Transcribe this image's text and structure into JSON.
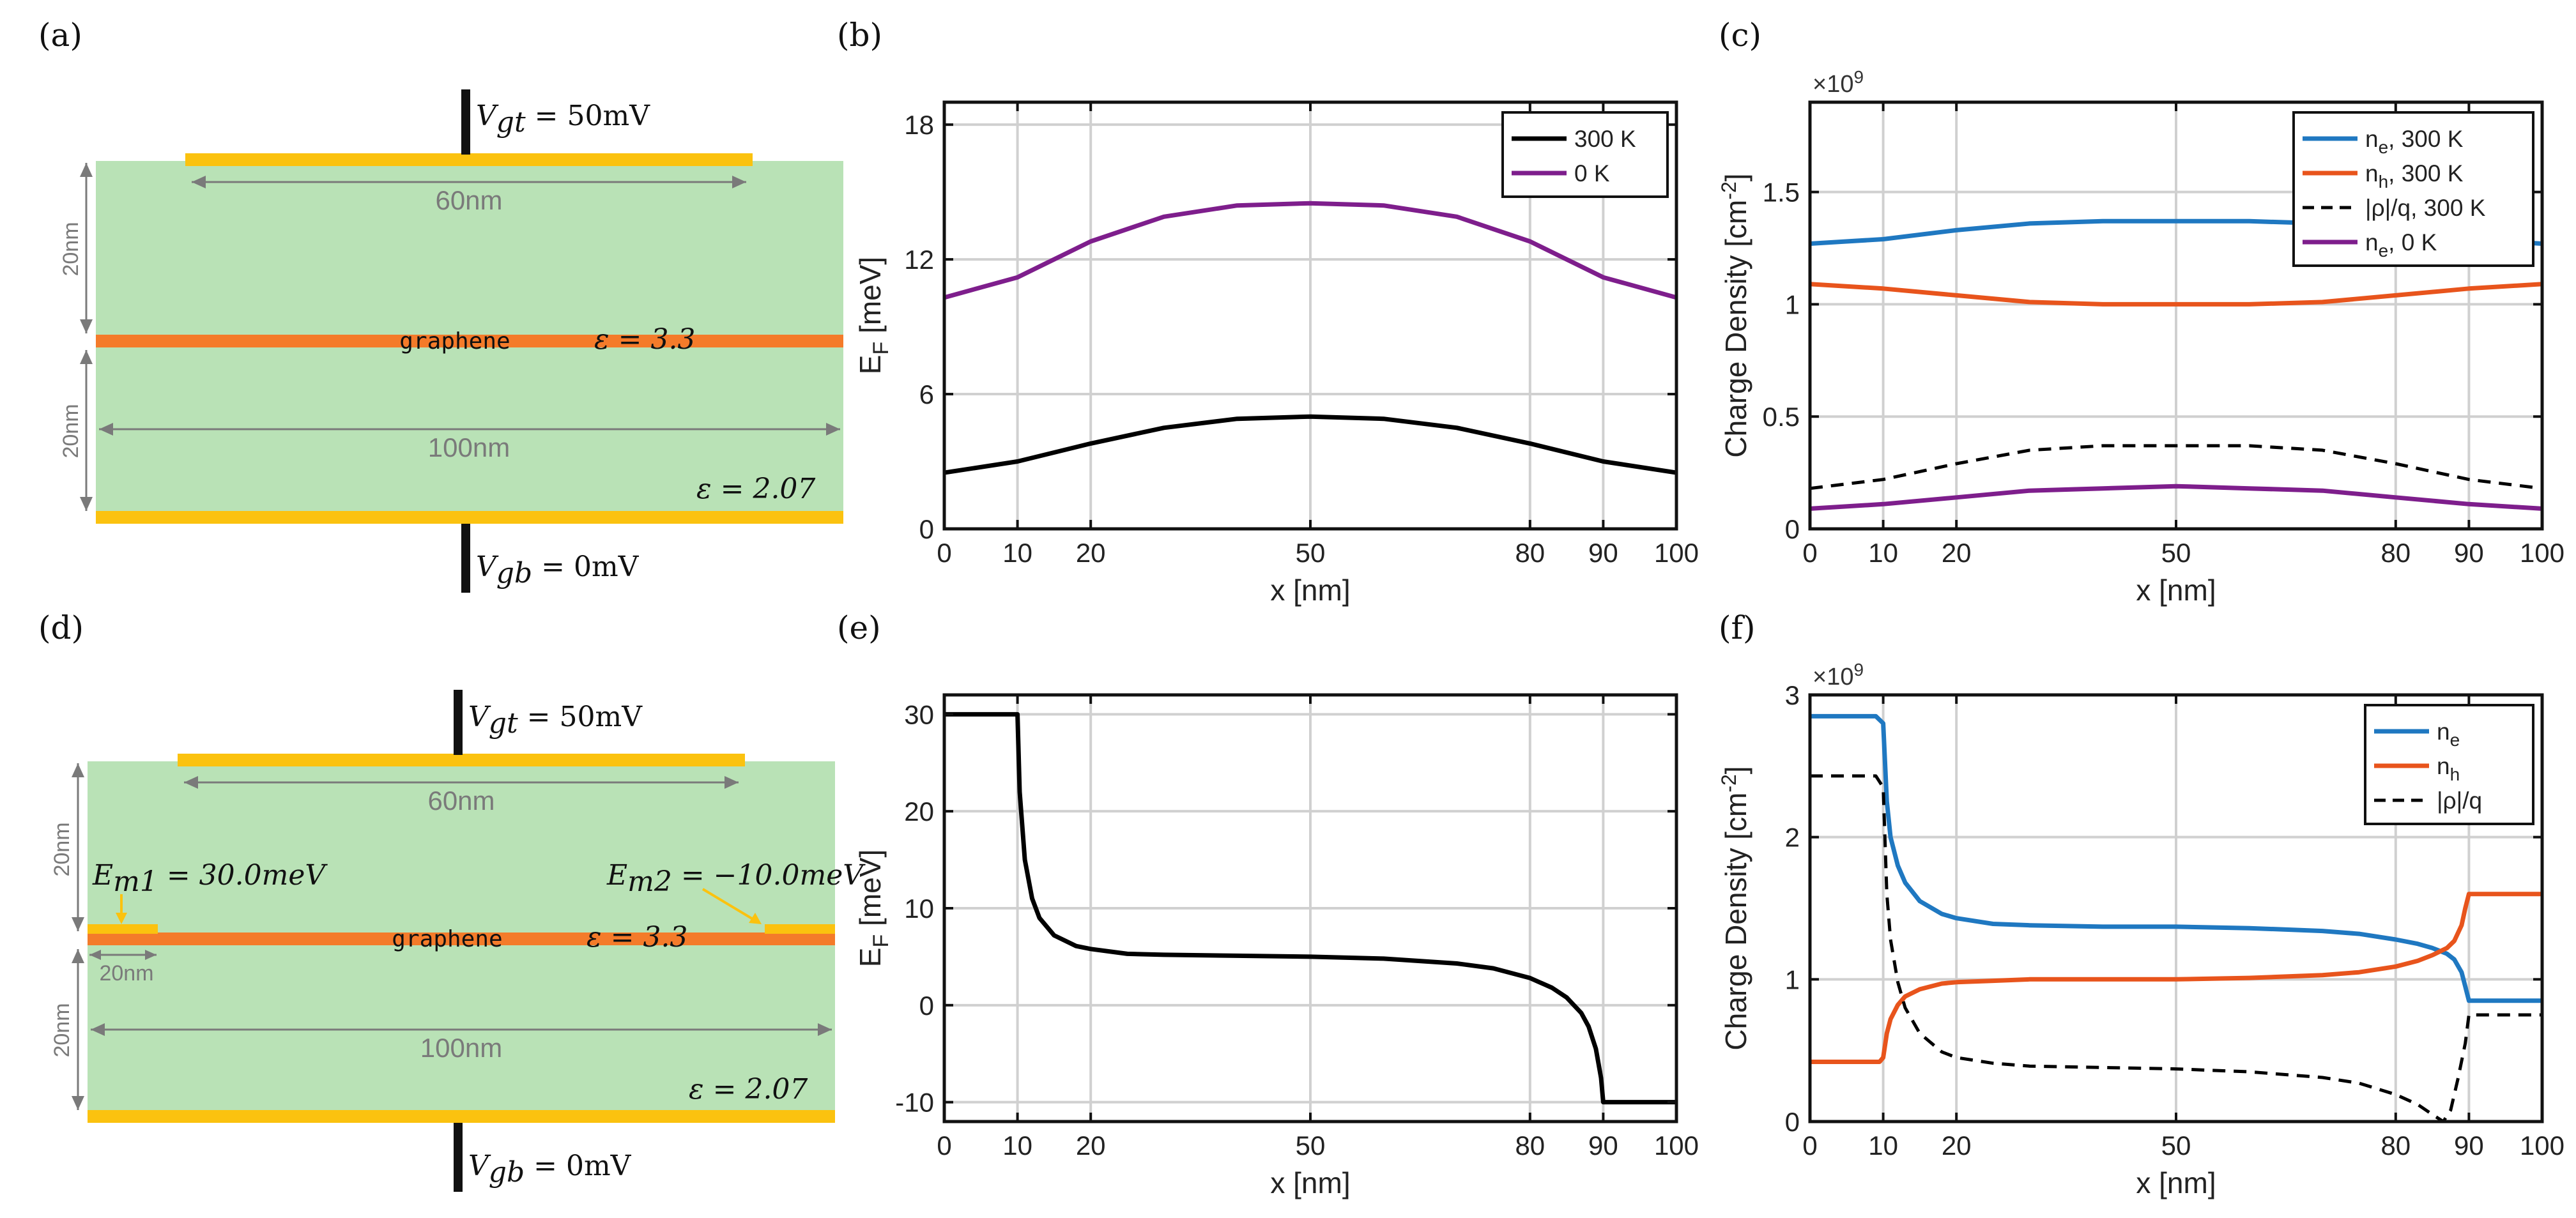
{
  "colors": {
    "dielectric": "#b9e2b6",
    "gate": "#fbc20f",
    "graphene": "#f47b2a",
    "dim_arrow": "#7a7a7a",
    "electrode": "#111111",
    "black": "#000000",
    "purple": "#7e1e8c",
    "blue": "#1f78c1",
    "orange": "#e8541c"
  },
  "panel_labels": {
    "a": "(a)",
    "b": "(b)",
    "c": "(c)",
    "d": "(d)",
    "e": "(e)",
    "f": "(f)"
  },
  "diagram_a": {
    "vgt_label": {
      "sym": "V",
      "sub": "gt",
      "value": " = 50mV"
    },
    "vgb_label": {
      "sym": "V",
      "sub": "gb",
      "value": " = 0mV"
    },
    "top_gate_width": "60nm",
    "device_width": "100nm",
    "top_thickness": "20nm",
    "bottom_thickness": "20nm",
    "graphene_label": "graphene",
    "eps_graphene": "ε = 3.3",
    "eps_substrate": "ε = 2.07"
  },
  "diagram_d": {
    "vgt_label": {
      "sym": "V",
      "sub": "gt",
      "value": " = 50mV"
    },
    "vgb_label": {
      "sym": "V",
      "sub": "gb",
      "value": " = 0mV"
    },
    "top_gate_width": "60nm",
    "device_width": "100nm",
    "top_thickness": "20nm",
    "bottom_thickness": "20nm",
    "contact_width": "20nm",
    "graphene_label": "graphene",
    "eps_graphene": "ε = 3.3",
    "eps_substrate": "ε = 2.07",
    "em1": {
      "sym": "E",
      "sub": "m1",
      "value": " = 30.0meV"
    },
    "em2": {
      "sym": "E",
      "sub": "m2",
      "value": " = −10.0meV"
    }
  },
  "chart_data": [
    {
      "panel": "b",
      "type": "line",
      "xlabel": "x [nm]",
      "ylabel": "E_F [meV]",
      "ylabel_main": "E",
      "ylabel_sub": "F",
      "ylabel_unit": " [meV]",
      "xlim": [
        0,
        100
      ],
      "ylim": [
        0,
        19
      ],
      "xticks": [
        0,
        10,
        20,
        50,
        80,
        90,
        100
      ],
      "yticks": [
        0,
        6,
        12,
        18
      ],
      "xtick_labels": [
        "0",
        "10",
        "20",
        "50",
        "80",
        "90",
        "100"
      ],
      "ytick_labels": [
        "0",
        "6",
        "12",
        "18"
      ],
      "grid": true,
      "legend_position": "top-right",
      "series": [
        {
          "name": "300 K",
          "color": "#000000",
          "dash": false,
          "x": [
            0,
            10,
            20,
            30,
            40,
            50,
            60,
            70,
            80,
            90,
            100
          ],
          "y": [
            2.5,
            3.0,
            3.8,
            4.5,
            4.9,
            5.0,
            4.9,
            4.5,
            3.8,
            3.0,
            2.5
          ]
        },
        {
          "name": "0 K",
          "color": "#7e1e8c",
          "dash": false,
          "x": [
            0,
            10,
            20,
            30,
            40,
            50,
            60,
            70,
            80,
            90,
            100
          ],
          "y": [
            10.3,
            11.2,
            12.8,
            13.9,
            14.4,
            14.5,
            14.4,
            13.9,
            12.8,
            11.2,
            10.3
          ]
        }
      ]
    },
    {
      "panel": "c",
      "type": "line",
      "xlabel": "x [nm]",
      "ylabel": "Charge Density [cm^-2]",
      "ylabel_main": "Charge Density [cm",
      "ylabel_sup": "-2",
      "ylabel_end": "]",
      "multiplier": "×10",
      "multiplier_exp": "9",
      "xlim": [
        0,
        100
      ],
      "ylim": [
        0,
        1.9
      ],
      "xticks": [
        0,
        10,
        20,
        50,
        80,
        90,
        100
      ],
      "yticks": [
        0,
        0.5,
        1,
        1.5
      ],
      "xtick_labels": [
        "0",
        "10",
        "20",
        "50",
        "80",
        "90",
        "100"
      ],
      "ytick_labels": [
        "0",
        "0.5",
        "1",
        "1.5"
      ],
      "grid": true,
      "legend_position": "top-right",
      "series": [
        {
          "name": "n_e, 300 K",
          "label_main": "n",
          "label_sub": "e",
          "label_end": ", 300 K",
          "color": "#1f78c1",
          "dash": false,
          "x": [
            0,
            10,
            20,
            30,
            40,
            50,
            60,
            70,
            80,
            90,
            100
          ],
          "y": [
            1.27,
            1.29,
            1.33,
            1.36,
            1.37,
            1.37,
            1.37,
            1.36,
            1.33,
            1.29,
            1.27
          ]
        },
        {
          "name": "n_h, 300 K",
          "label_main": "n",
          "label_sub": "h",
          "label_end": ", 300 K",
          "color": "#e8541c",
          "dash": false,
          "x": [
            0,
            10,
            20,
            30,
            40,
            50,
            60,
            70,
            80,
            90,
            100
          ],
          "y": [
            1.09,
            1.07,
            1.04,
            1.01,
            1.0,
            1.0,
            1.0,
            1.01,
            1.04,
            1.07,
            1.09
          ]
        },
        {
          "name": "|ρ|/q, 300 K",
          "label_main": "|ρ|/q, 300 K",
          "label_sub": "",
          "label_end": "",
          "color": "#000000",
          "dash": true,
          "x": [
            0,
            10,
            20,
            30,
            40,
            50,
            60,
            70,
            80,
            90,
            100
          ],
          "y": [
            0.18,
            0.22,
            0.29,
            0.35,
            0.37,
            0.37,
            0.37,
            0.35,
            0.29,
            0.22,
            0.18
          ]
        },
        {
          "name": "n_e, 0 K",
          "label_main": "n",
          "label_sub": "e",
          "label_end": ", 0 K",
          "color": "#7e1e8c",
          "dash": false,
          "x": [
            0,
            10,
            20,
            30,
            40,
            50,
            60,
            70,
            80,
            90,
            100
          ],
          "y": [
            0.09,
            0.11,
            0.14,
            0.17,
            0.18,
            0.19,
            0.18,
            0.17,
            0.14,
            0.11,
            0.09
          ]
        }
      ]
    },
    {
      "panel": "e",
      "type": "line",
      "xlabel": "x [nm]",
      "ylabel": "E_F [meV]",
      "ylabel_main": "E",
      "ylabel_sub": "F",
      "ylabel_unit": " [meV]",
      "xlim": [
        0,
        100
      ],
      "ylim": [
        -12,
        32
      ],
      "xticks": [
        0,
        10,
        20,
        50,
        80,
        90,
        100
      ],
      "yticks": [
        -10,
        0,
        10,
        20,
        30
      ],
      "xtick_labels": [
        "0",
        "10",
        "20",
        "50",
        "80",
        "90",
        "100"
      ],
      "ytick_labels": [
        "-10",
        "0",
        "10",
        "20",
        "30"
      ],
      "grid": true,
      "legend_position": "none",
      "series": [
        {
          "name": "",
          "color": "#000000",
          "dash": false,
          "x": [
            0,
            10,
            10.3,
            11,
            12,
            13,
            15,
            18,
            20,
            25,
            30,
            40,
            50,
            60,
            70,
            75,
            80,
            83,
            85,
            87,
            88,
            89,
            89.7,
            90,
            100
          ],
          "y": [
            30,
            30,
            22,
            15,
            11,
            9,
            7.2,
            6.1,
            5.8,
            5.3,
            5.2,
            5.1,
            5.0,
            4.8,
            4.3,
            3.8,
            2.8,
            1.8,
            0.8,
            -0.8,
            -2.2,
            -4.5,
            -7.5,
            -10,
            -10
          ]
        }
      ]
    },
    {
      "panel": "f",
      "type": "line",
      "xlabel": "x [nm]",
      "ylabel": "Charge Density [cm^-2]",
      "ylabel_main": "Charge Density [cm",
      "ylabel_sup": "-2",
      "ylabel_end": "]",
      "multiplier": "×10",
      "multiplier_exp": "9",
      "xlim": [
        0,
        100
      ],
      "ylim": [
        0,
        3
      ],
      "xticks": [
        0,
        10,
        20,
        50,
        80,
        90,
        100
      ],
      "yticks": [
        0,
        1,
        2,
        3
      ],
      "xtick_labels": [
        "0",
        "10",
        "20",
        "50",
        "80",
        "90",
        "100"
      ],
      "ytick_labels": [
        "0",
        "1",
        "2",
        "3"
      ],
      "grid": true,
      "legend_position": "top-right",
      "series": [
        {
          "name": "n_e",
          "label_main": "n",
          "label_sub": "e",
          "label_end": "",
          "color": "#1f78c1",
          "dash": false,
          "x": [
            0,
            9,
            10,
            10.5,
            11,
            12,
            13,
            15,
            18,
            20,
            25,
            30,
            40,
            50,
            60,
            70,
            75,
            80,
            83,
            85,
            87,
            88,
            89,
            89.5,
            90,
            100
          ],
          "y": [
            2.85,
            2.85,
            2.8,
            2.25,
            2.0,
            1.8,
            1.68,
            1.55,
            1.46,
            1.43,
            1.39,
            1.38,
            1.37,
            1.37,
            1.36,
            1.34,
            1.32,
            1.28,
            1.25,
            1.22,
            1.18,
            1.14,
            1.05,
            0.95,
            0.85,
            0.85
          ]
        },
        {
          "name": "n_h",
          "label_main": "n",
          "label_sub": "h",
          "label_end": "",
          "color": "#e8541c",
          "dash": false,
          "x": [
            0,
            9.5,
            10,
            10.5,
            11,
            12,
            13,
            15,
            18,
            20,
            25,
            30,
            40,
            50,
            60,
            70,
            75,
            80,
            83,
            85,
            87,
            88,
            89,
            89.5,
            90,
            100
          ],
          "y": [
            0.42,
            0.42,
            0.45,
            0.62,
            0.72,
            0.82,
            0.88,
            0.93,
            0.97,
            0.98,
            0.99,
            1.0,
            1.0,
            1.0,
            1.01,
            1.03,
            1.05,
            1.09,
            1.13,
            1.17,
            1.22,
            1.27,
            1.38,
            1.5,
            1.6,
            1.6
          ]
        },
        {
          "name": "|ρ|/q",
          "label_main": "|ρ|/q",
          "label_sub": "",
          "label_end": "",
          "color": "#000000",
          "dash": true,
          "x": [
            0,
            9,
            10,
            10.5,
            11,
            12,
            13,
            15,
            18,
            20,
            25,
            30,
            40,
            50,
            60,
            70,
            75,
            80,
            83,
            85,
            86.5,
            87.5,
            88.5,
            89.5,
            90,
            100
          ],
          "y": [
            2.43,
            2.43,
            2.35,
            1.6,
            1.28,
            0.98,
            0.8,
            0.62,
            0.49,
            0.45,
            0.41,
            0.39,
            0.38,
            0.37,
            0.35,
            0.31,
            0.27,
            0.19,
            0.12,
            0.05,
            0.0,
            0.08,
            0.3,
            0.55,
            0.75,
            0.75
          ]
        }
      ]
    }
  ]
}
